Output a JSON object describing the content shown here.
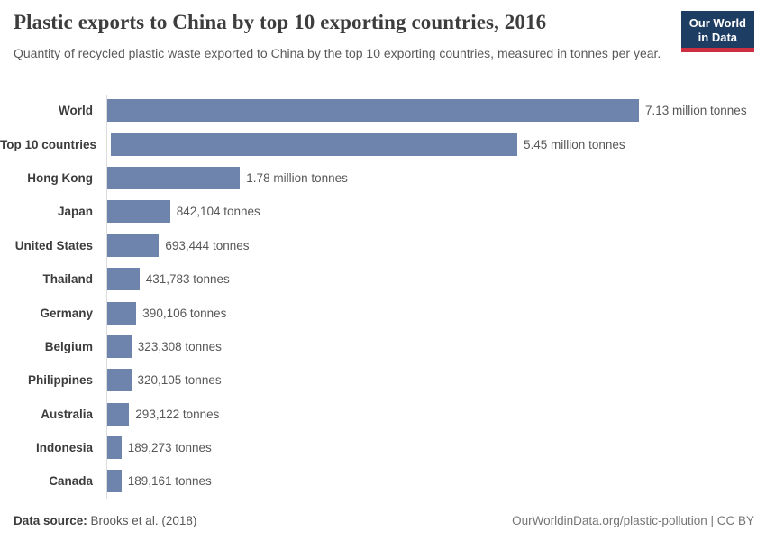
{
  "header": {
    "title": "Plastic exports to China by top 10 exporting countries, 2016",
    "subtitle": "Quantity of recycled plastic waste exported to China by the top 10 exporting countries, measured in tonnes per year.",
    "logo": {
      "line1": "Our World",
      "line2": "in Data"
    }
  },
  "chart_data": {
    "type": "bar",
    "orientation": "horizontal",
    "title": "Plastic exports to China by top 10 exporting countries, 2016",
    "xlabel": "",
    "ylabel": "",
    "unit": "tonnes",
    "xlim": [
      0,
      7130000
    ],
    "grid": false,
    "legend": "none",
    "categories": [
      "World",
      "Top 10 countries",
      "Hong Kong",
      "Japan",
      "United States",
      "Thailand",
      "Germany",
      "Belgium",
      "Philippines",
      "Australia",
      "Indonesia",
      "Canada"
    ],
    "values": [
      7130000,
      5450000,
      1780000,
      842104,
      693444,
      431783,
      390106,
      323308,
      320105,
      293122,
      189273,
      189161
    ],
    "value_labels": [
      "7.13 million tonnes",
      "5.45 million tonnes",
      "1.78 million tonnes",
      "842,104 tonnes",
      "693,444 tonnes",
      "431,783 tonnes",
      "390,106 tonnes",
      "323,308 tonnes",
      "320,105 tonnes",
      "293,122 tonnes",
      "189,273 tonnes",
      "189,161 tonnes"
    ],
    "bar_color": "#6e84ac"
  },
  "footer": {
    "datasource_label": "Data source:",
    "datasource_value": " Brooks et al. (2018)",
    "right_text": "OurWorldinData.org/plastic-pollution | CC BY"
  },
  "colors": {
    "bar": "#6e84ac",
    "logo_bg": "#1d3d63",
    "logo_stripe": "#cd2e41",
    "axis_line": "#dcdcdc",
    "title_text": "#3d3d3d",
    "subtitle_text": "#595959"
  }
}
